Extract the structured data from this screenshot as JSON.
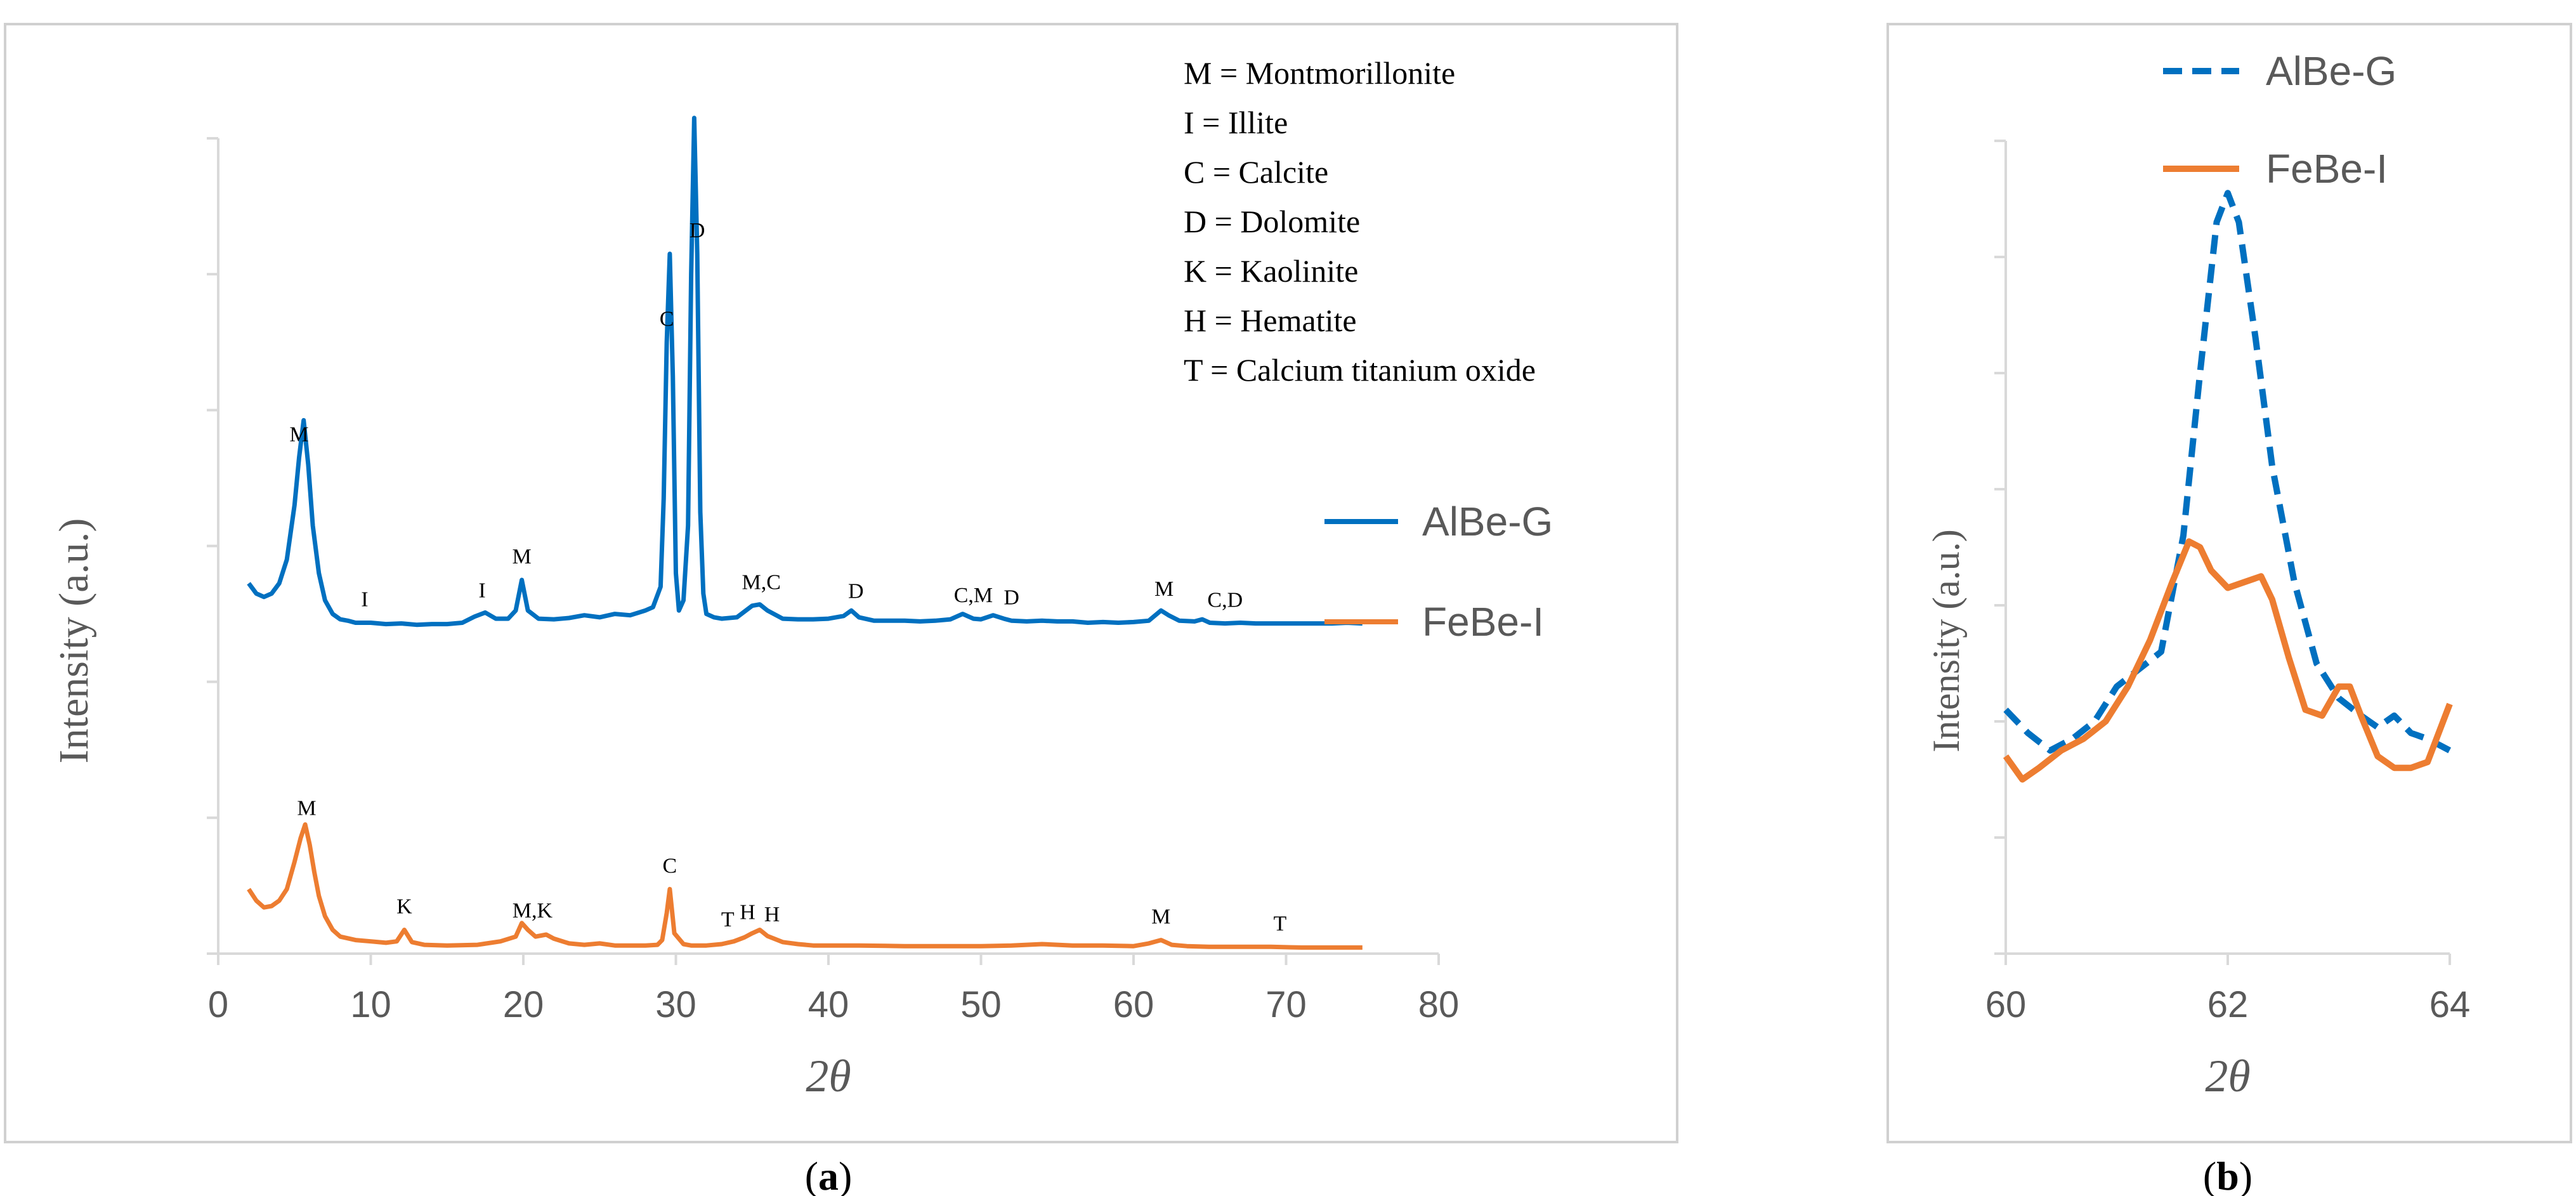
{
  "chart_data": [
    {
      "type": "line",
      "panel_label": "(a)",
      "panel_letter": "a",
      "xlabel": "2θ",
      "ylabel": "Intensity (a.u.)",
      "xlim": [
        0,
        80
      ],
      "xticks": [
        "0",
        "10",
        "20",
        "30",
        "40",
        "50",
        "60",
        "70",
        "80"
      ],
      "ylim": [
        0,
        12
      ],
      "y_ticks_labeled": false,
      "legend": {
        "placement": "right",
        "entries": [
          "AlBe-G",
          "FeBe-I"
        ]
      },
      "phase_key": [
        "M = Montmorillonite",
        "I = Illite",
        "C = Calcite",
        "D = Dolomite",
        "K = Kaolinite",
        "H = Hematite",
        "T = Calcium titanium oxide"
      ],
      "series": [
        {
          "name": "AlBe-G",
          "color": "#0070C0",
          "x": [
            2,
            2.5,
            3,
            3.5,
            4,
            4.5,
            5,
            5.3,
            5.6,
            5.9,
            6.2,
            6.6,
            7,
            7.5,
            8,
            8.5,
            9,
            10,
            11,
            12,
            13,
            14,
            15,
            16,
            16.8,
            17.5,
            18.2,
            19,
            19.5,
            19.9,
            20.3,
            21,
            22,
            23,
            24,
            25,
            26,
            27,
            28,
            28.5,
            29,
            29.2,
            29.4,
            29.6,
            29.8,
            30,
            30.2,
            30.5,
            30.8,
            31,
            31.2,
            31.4,
            31.6,
            31.8,
            32,
            32.5,
            33,
            34,
            35,
            35.5,
            36,
            37,
            38,
            39,
            40,
            41,
            41.5,
            42,
            43,
            44,
            45,
            46,
            47,
            48,
            48.8,
            49.5,
            50,
            50.8,
            51.5,
            52,
            53,
            54,
            55,
            56,
            57,
            58,
            59,
            60,
            61,
            61.8,
            62.3,
            63,
            64,
            64.5,
            65,
            66,
            67,
            68,
            69,
            70,
            71,
            72,
            73,
            74,
            75
          ],
          "values": [
            5.45,
            5.3,
            5.25,
            5.3,
            5.45,
            5.8,
            6.6,
            7.3,
            7.85,
            7.2,
            6.3,
            5.6,
            5.2,
            5.0,
            4.92,
            4.9,
            4.87,
            4.87,
            4.85,
            4.86,
            4.84,
            4.85,
            4.85,
            4.87,
            4.96,
            5.02,
            4.93,
            4.93,
            5.05,
            5.5,
            5.05,
            4.93,
            4.92,
            4.94,
            4.98,
            4.95,
            5.0,
            4.98,
            5.05,
            5.1,
            5.4,
            6.7,
            9.0,
            10.3,
            8.5,
            5.6,
            5.05,
            5.2,
            6.3,
            10.0,
            12.3,
            10.3,
            6.5,
            5.3,
            5.0,
            4.95,
            4.93,
            4.95,
            5.12,
            5.14,
            5.05,
            4.93,
            4.92,
            4.92,
            4.93,
            4.97,
            5.05,
            4.95,
            4.9,
            4.9,
            4.9,
            4.89,
            4.9,
            4.92,
            5.0,
            4.93,
            4.92,
            4.98,
            4.93,
            4.9,
            4.89,
            4.9,
            4.89,
            4.89,
            4.87,
            4.88,
            4.87,
            4.88,
            4.9,
            5.05,
            4.98,
            4.9,
            4.89,
            4.92,
            4.87,
            4.86,
            4.87,
            4.86,
            4.86,
            4.86,
            4.86,
            4.86,
            4.86,
            4.87,
            4.86
          ]
        },
        {
          "name": "FeBe-I",
          "color": "#ED7D31",
          "x": [
            2,
            2.5,
            3,
            3.5,
            4,
            4.5,
            5,
            5.4,
            5.7,
            6,
            6.3,
            6.6,
            7,
            7.5,
            8,
            9,
            10,
            11,
            11.7,
            12.2,
            12.7,
            13.5,
            15,
            17,
            18.5,
            19.5,
            19.9,
            20.3,
            20.8,
            21.5,
            22,
            23,
            24,
            25,
            26,
            27,
            28,
            28.8,
            29.1,
            29.4,
            29.6,
            29.9,
            30.5,
            31,
            32,
            33,
            33.8,
            34.5,
            35,
            35.5,
            36,
            37,
            38,
            39,
            40,
            42,
            45,
            48,
            50,
            52,
            54,
            56,
            58,
            60,
            61,
            61.8,
            62.5,
            63.5,
            65,
            67,
            69,
            71,
            73,
            75
          ],
          "values": [
            0.95,
            0.78,
            0.68,
            0.7,
            0.78,
            0.95,
            1.35,
            1.7,
            1.9,
            1.6,
            1.2,
            0.85,
            0.55,
            0.35,
            0.25,
            0.2,
            0.18,
            0.16,
            0.18,
            0.35,
            0.17,
            0.13,
            0.12,
            0.13,
            0.18,
            0.25,
            0.45,
            0.35,
            0.25,
            0.28,
            0.22,
            0.15,
            0.13,
            0.15,
            0.12,
            0.12,
            0.12,
            0.13,
            0.2,
            0.6,
            0.95,
            0.3,
            0.14,
            0.12,
            0.12,
            0.14,
            0.18,
            0.24,
            0.3,
            0.35,
            0.26,
            0.17,
            0.14,
            0.12,
            0.12,
            0.12,
            0.11,
            0.11,
            0.11,
            0.12,
            0.14,
            0.12,
            0.12,
            0.11,
            0.15,
            0.2,
            0.13,
            0.11,
            0.1,
            0.1,
            0.1,
            0.09,
            0.09,
            0.09
          ]
        }
      ],
      "annotations": [
        {
          "series": "AlBe-G",
          "x": 5.3,
          "text": "M"
        },
        {
          "series": "AlBe-G",
          "x": 9.6,
          "text": "I"
        },
        {
          "series": "AlBe-G",
          "x": 17.3,
          "text": "I"
        },
        {
          "series": "AlBe-G",
          "x": 19.9,
          "text": "M"
        },
        {
          "series": "AlBe-G",
          "x": 29.4,
          "text": "C"
        },
        {
          "series": "AlBe-G",
          "x": 31.4,
          "text": "D"
        },
        {
          "series": "AlBe-G",
          "x": 35.6,
          "text": "M,C"
        },
        {
          "series": "AlBe-G",
          "x": 41.8,
          "text": "D"
        },
        {
          "series": "AlBe-G",
          "x": 49.5,
          "text": "C,M"
        },
        {
          "series": "AlBe-G",
          "x": 52.0,
          "text": "D"
        },
        {
          "series": "AlBe-G",
          "x": 62.0,
          "text": "M"
        },
        {
          "series": "AlBe-G",
          "x": 66.0,
          "text": "C,D"
        },
        {
          "series": "FeBe-I",
          "x": 5.8,
          "text": "M"
        },
        {
          "series": "FeBe-I",
          "x": 12.2,
          "text": "K"
        },
        {
          "series": "FeBe-I",
          "x": 20.6,
          "text": "M,K"
        },
        {
          "series": "FeBe-I",
          "x": 29.6,
          "text": "C"
        },
        {
          "series": "FeBe-I",
          "x": 33.4,
          "text": "T"
        },
        {
          "series": "FeBe-I",
          "x": 34.7,
          "text": "H"
        },
        {
          "series": "FeBe-I",
          "x": 36.3,
          "text": "H"
        },
        {
          "series": "FeBe-I",
          "x": 61.8,
          "text": "M"
        },
        {
          "series": "FeBe-I",
          "x": 69.6,
          "text": "T"
        }
      ]
    },
    {
      "type": "line",
      "panel_label": "(b)",
      "panel_letter": "b",
      "xlabel": "2θ",
      "ylabel": "Intensity (a.u.)",
      "xlim": [
        60,
        64
      ],
      "xticks": [
        "60",
        "62",
        "64"
      ],
      "ylim": [
        0,
        7
      ],
      "y_ticks_labeled": false,
      "legend": {
        "placement": "top-center",
        "entries": [
          "AlBe-G",
          "FeBe-I"
        ]
      },
      "series": [
        {
          "name": "AlBe-G",
          "color": "#0070C0",
          "style": "dashed",
          "x": [
            60,
            60.2,
            60.4,
            60.6,
            60.8,
            61,
            61.2,
            61.4,
            61.6,
            61.75,
            61.9,
            62,
            62.1,
            62.25,
            62.4,
            62.6,
            62.8,
            63,
            63.2,
            63.35,
            63.5,
            63.65,
            63.8,
            64
          ],
          "values": [
            2.1,
            1.9,
            1.75,
            1.85,
            2.0,
            2.3,
            2.45,
            2.6,
            3.6,
            5.0,
            6.3,
            6.55,
            6.3,
            5.3,
            4.2,
            3.2,
            2.5,
            2.2,
            2.05,
            1.95,
            2.05,
            1.9,
            1.85,
            1.75
          ]
        },
        {
          "name": "FeBe-I",
          "color": "#ED7D31",
          "style": "solid",
          "x": [
            60,
            60.15,
            60.3,
            60.5,
            60.7,
            60.9,
            61.1,
            61.3,
            61.5,
            61.65,
            61.75,
            61.85,
            62,
            62.15,
            62.3,
            62.4,
            62.55,
            62.7,
            62.85,
            63,
            63.1,
            63.2,
            63.35,
            63.5,
            63.65,
            63.8,
            64
          ],
          "values": [
            1.7,
            1.5,
            1.6,
            1.75,
            1.85,
            2.0,
            2.3,
            2.7,
            3.2,
            3.55,
            3.5,
            3.3,
            3.15,
            3.2,
            3.25,
            3.05,
            2.55,
            2.1,
            2.05,
            2.3,
            2.3,
            2.05,
            1.7,
            1.6,
            1.6,
            1.65,
            2.15
          ]
        }
      ]
    }
  ]
}
